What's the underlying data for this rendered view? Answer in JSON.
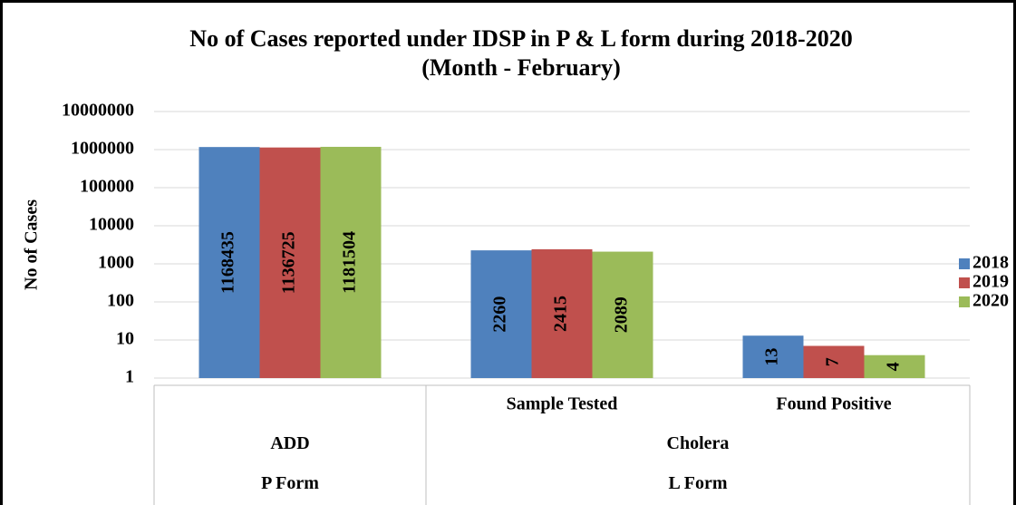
{
  "chart_data": {
    "type": "bar",
    "title": "No of Cases reported under IDSP in P & L form during 2018-2020",
    "subtitle": "(Month - February)",
    "y_label": "No of Cases",
    "groups": [
      {
        "name": "P Form",
        "subgroups": [
          {
            "name": "ADD",
            "categories": [
              null
            ]
          }
        ]
      },
      {
        "name": "L Form",
        "subgroups": [
          {
            "name": "Cholera",
            "categories": [
              "Sample Tested",
              "Found Positive"
            ]
          }
        ]
      }
    ],
    "series": [
      {
        "name": "2018",
        "color": "#4f81bd",
        "values": [
          1168435,
          2260,
          13
        ]
      },
      {
        "name": "2019",
        "color": "#c0504d",
        "values": [
          1136725,
          2415,
          7
        ]
      },
      {
        "name": "2020",
        "color": "#9bbb59",
        "values": [
          1181504,
          2089,
          4
        ]
      }
    ],
    "ylim": [
      1,
      10000000
    ],
    "yticks": [
      1,
      10,
      100,
      1000,
      10000,
      100000,
      1000000,
      10000000
    ],
    "log_scale": true,
    "grid": true,
    "legend": "right"
  }
}
